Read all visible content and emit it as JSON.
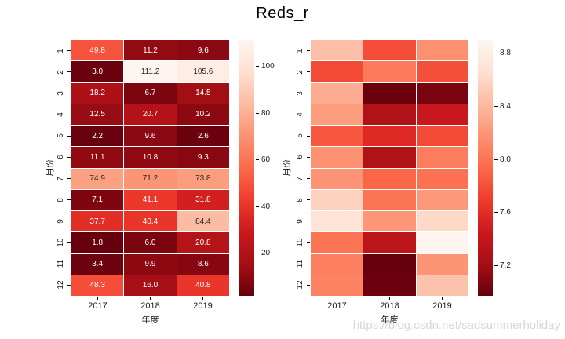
{
  "title": "Reds_r",
  "watermark": "https://blog.csdn.net/sadsummerholiday",
  "colormap": {
    "name": "Reds_r",
    "reds_stops": [
      "#fff5f0",
      "#fee0d2",
      "#fcbba1",
      "#fc9272",
      "#fb6a4a",
      "#ef3b2c",
      "#cb181d",
      "#a50f15",
      "#67000d"
    ]
  },
  "chart_data": [
    {
      "type": "heatmap",
      "xlabel": "年度",
      "ylabel": "月份",
      "columns": [
        "2017",
        "2018",
        "2019"
      ],
      "rows": [
        "1",
        "2",
        "3",
        "4",
        "5",
        "6",
        "7",
        "8",
        "9",
        "10",
        "11",
        "12"
      ],
      "values": [
        [
          49.8,
          11.2,
          9.6
        ],
        [
          3.0,
          111.2,
          105.6
        ],
        [
          18.2,
          6.7,
          14.5
        ],
        [
          12.5,
          20.7,
          10.2
        ],
        [
          2.2,
          9.6,
          2.6
        ],
        [
          11.1,
          10.8,
          9.3
        ],
        [
          74.9,
          71.2,
          73.8
        ],
        [
          7.1,
          41.1,
          31.8
        ],
        [
          37.7,
          40.4,
          84.4
        ],
        [
          1.8,
          6.0,
          20.8
        ],
        [
          3.4,
          9.9,
          8.6
        ],
        [
          48.3,
          16.0,
          40.8
        ]
      ],
      "annotated": true,
      "annot_decimals": 1,
      "vmin": 1.8,
      "vmax": 111.2,
      "colorbar_ticks": [
        100,
        80,
        60,
        40,
        20
      ],
      "colorbar_tick_decimals": 0
    },
    {
      "type": "heatmap",
      "xlabel": "年度",
      "ylabel": "月份",
      "columns": [
        "2017",
        "2018",
        "2019"
      ],
      "rows": [
        "1",
        "2",
        "3",
        "4",
        "5",
        "6",
        "7",
        "8",
        "9",
        "10",
        "11",
        "12"
      ],
      "values": [
        [
          8.44,
          7.78,
          8.17
        ],
        [
          7.77,
          8.04,
          7.8
        ],
        [
          8.33,
          6.98,
          7.04
        ],
        [
          8.24,
          7.28,
          7.44
        ],
        [
          7.84,
          7.57,
          7.77
        ],
        [
          8.17,
          7.28,
          8.05
        ],
        [
          8.19,
          7.92,
          7.98
        ],
        [
          8.57,
          8.0,
          8.22
        ],
        [
          8.7,
          8.2,
          8.61
        ],
        [
          8.0,
          7.36,
          8.89
        ],
        [
          8.06,
          6.97,
          8.19
        ],
        [
          8.08,
          6.98,
          8.47
        ]
      ],
      "annotated": false,
      "annot_decimals": 1,
      "vmin": 6.97,
      "vmax": 8.9,
      "colorbar_ticks": [
        8.8,
        8.4,
        8.0,
        7.6,
        7.2
      ],
      "colorbar_tick_decimals": 1
    }
  ]
}
